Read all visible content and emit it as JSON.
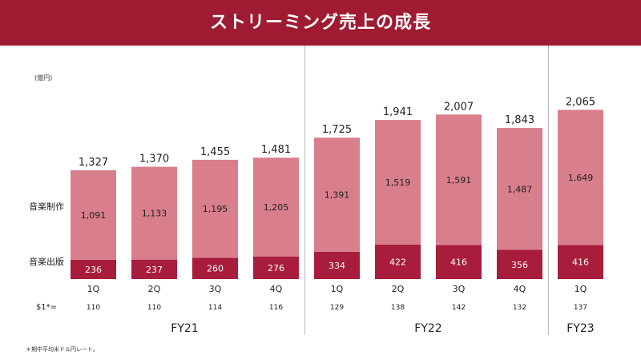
{
  "title": "ストリーミング売上の成長",
  "footnote": "＊期中平均米ドル円レート。",
  "chart_data": {
    "type": "bar",
    "stacked": true,
    "unit_label": "(億円)",
    "categories": [
      "1Q",
      "2Q",
      "3Q",
      "4Q",
      "1Q",
      "2Q",
      "3Q",
      "4Q",
      "1Q"
    ],
    "series": [
      {
        "name": "音楽出版",
        "values": [
          236,
          237,
          260,
          276,
          334,
          422,
          416,
          356,
          416
        ],
        "color": "#a81c3c"
      },
      {
        "name": "音楽制作",
        "values": [
          1091,
          1133,
          1195,
          1205,
          1391,
          1519,
          1591,
          1487,
          1649
        ],
        "color": "#d97e8b"
      }
    ],
    "totals": [
      1327,
      1370,
      1455,
      1481,
      1725,
      1941,
      2007,
      1843,
      2065
    ],
    "rate_label": "$1*=",
    "rates": [
      110,
      110,
      114,
      116,
      129,
      138,
      142,
      132,
      137
    ],
    "fiscal_years": [
      {
        "label": "FY21",
        "from": 0,
        "to": 3
      },
      {
        "label": "FY22",
        "from": 4,
        "to": 7
      },
      {
        "label": "FY23",
        "from": 8,
        "to": 8
      }
    ],
    "ylim": [
      0,
      2200
    ],
    "grid": false,
    "legend": "left"
  }
}
